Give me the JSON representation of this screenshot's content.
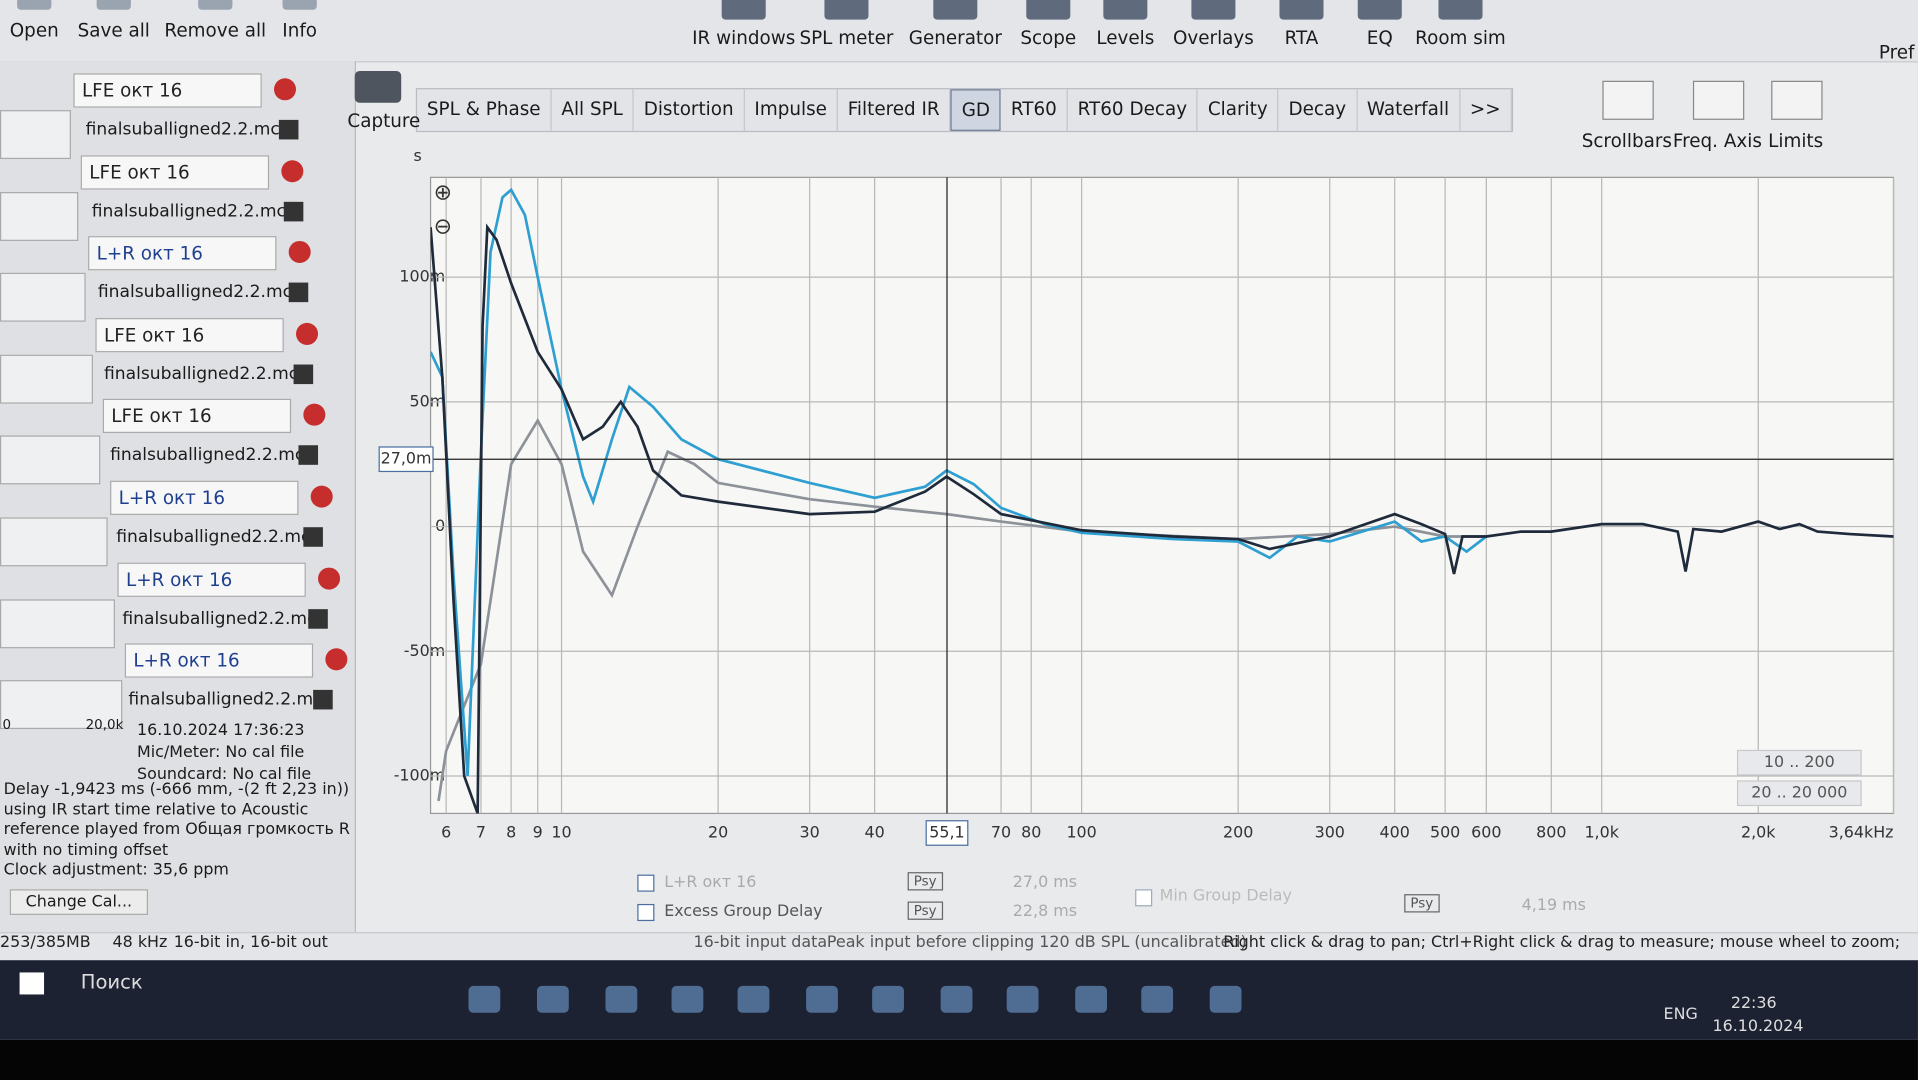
{
  "toolbar": {
    "file_buttons": [
      "Open",
      "Save all",
      "Remove all",
      "Info"
    ],
    "tool_buttons": [
      "IR windows",
      "SPL meter",
      "Generator",
      "Scope",
      "Levels",
      "Overlays",
      "RTA",
      "EQ",
      "Room sim"
    ],
    "preferences": "Pref"
  },
  "graph_toolbar": {
    "capture": "Capture",
    "tabs": [
      "SPL & Phase",
      "All SPL",
      "Distortion",
      "Impulse",
      "Filtered IR",
      "GD",
      "RT60",
      "RT60 Decay",
      "Clarity",
      "Decay",
      "Waterfall",
      ">>"
    ],
    "controls": [
      "Scrollbars",
      "Freq. Axis",
      "Limits"
    ]
  },
  "measurements": [
    {
      "name": "LFE окт 16",
      "file": "finalsuballigned2.2.mc"
    },
    {
      "name": "LFE окт 16",
      "file": "finalsuballigned2.2.mc"
    },
    {
      "name": "L+R окт 16",
      "file": "finalsuballigned2.2.mc"
    },
    {
      "name": "LFE окт 16",
      "file": "finalsuballigned2.2.mc"
    },
    {
      "name": "LFE окт 16",
      "file": "finalsuballigned2.2.mc"
    },
    {
      "name": "L+R окт 16",
      "file": "finalsuballigned2.2.mc"
    },
    {
      "name": "L+R окт 16",
      "file": "finalsuballigned2.2.mc"
    },
    {
      "name": "L+R окт 16",
      "file": "finalsuballigned2.2.mc",
      "date": "16.10.2024 17:36:23",
      "mic": "Mic/Meter: No cal file",
      "soundcard": "Soundcard: No cal file"
    }
  ],
  "thumbnail_axis": [
    "0",
    "20,0k"
  ],
  "info": [
    "Delay -1,9423 ms (-666 mm, -(2 ft 2,23 in))",
    "using IR start time relative to Acoustic",
    "reference played from Общая громкость R",
    "with no timing offset",
    "Clock adjustment: 35,6 ppm"
  ],
  "change_cal": "Change Cal...",
  "legend": {
    "rows": [
      {
        "label": "L+R окт 16",
        "psy": "Psy",
        "value": "27,0 ms"
      },
      {
        "label": "Excess Group Delay",
        "psy": "Psy",
        "value": "22,8 ms"
      }
    ],
    "min_group_delay": {
      "label": "Min Group Delay",
      "psy": "Psy",
      "value": "4,19 ms"
    }
  },
  "range_buttons": [
    "10 .. 200",
    "20 .. 20 000"
  ],
  "status_bar": [
    "253/385MB",
    "48 kHz",
    "16-bit in, 16-bit out",
    "16-bit input data",
    "Peak input before clipping 120 dB SPL (uncalibrated)",
    "Right click & drag to pan; Ctrl+Right click & drag to measure; mouse wheel to zoom;"
  ],
  "taskbar": {
    "search": "Поиск",
    "language": "ENG",
    "time": "22:36",
    "date": "16.10.2024"
  },
  "chart_data": {
    "type": "line",
    "y_label": "s",
    "xscale": "log",
    "grid": true,
    "xlim": [
      5.6,
      3640
    ],
    "ylim": [
      -0.115,
      0.14
    ],
    "xticks": [
      6,
      7,
      8,
      9,
      10,
      20,
      30,
      40,
      70,
      80,
      100,
      200,
      300,
      400,
      500,
      600,
      800,
      {
        "value": 1000,
        "label": "1,0k"
      },
      {
        "value": 2000,
        "label": "2,0k"
      },
      {
        "value": 3640,
        "label": "3,64kHz"
      }
    ],
    "yticks": [
      {
        "value": 0.1,
        "label": "100m"
      },
      {
        "value": 0.05,
        "label": "50m"
      },
      0,
      {
        "value": -0.05,
        "label": "-50m"
      },
      {
        "value": -0.1,
        "label": "-100m"
      }
    ],
    "cursor": {
      "x": 55.1,
      "x_label": "55,1",
      "y": 0.027,
      "y_label": "27,0m"
    },
    "series": [
      {
        "color": "#8c9298",
        "x": [
          5.8,
          6,
          7,
          8,
          9,
          10,
          11,
          12.5,
          14,
          16,
          18,
          20,
          30,
          40,
          55,
          70,
          100,
          200,
          300,
          400,
          500,
          600
        ],
        "values": [
          -0.11,
          -0.09,
          -0.055,
          0.025,
          0.0425,
          0.025,
          -0.01,
          -0.0275,
          0,
          0.03,
          0.025,
          0.0175,
          0.011,
          0.008,
          0.005,
          0.002,
          -0.002,
          -0.005,
          -0.003,
          0,
          -0.004,
          -0.004
        ]
      },
      {
        "color": "#2e9fd0",
        "x": [
          5.6,
          5.9,
          6.2,
          6.6,
          7,
          7.3,
          7.7,
          8,
          8.5,
          9,
          10,
          11,
          11.5,
          12.5,
          13.5,
          15,
          17,
          20,
          30,
          40,
          50,
          55,
          62,
          70,
          85,
          100,
          150,
          200,
          230,
          260,
          300,
          400,
          450,
          500,
          550,
          600
        ],
        "values": [
          0.07,
          0.06,
          -0.02,
          -0.1,
          0.03,
          0.11,
          0.132,
          0.135,
          0.125,
          0.1,
          0.055,
          0.02,
          0.01,
          0.035,
          0.056,
          0.048,
          0.035,
          0.027,
          0.0175,
          0.0115,
          0.016,
          0.0225,
          0.017,
          0.0075,
          0.001,
          -0.0025,
          -0.005,
          -0.006,
          -0.0125,
          -0.004,
          -0.006,
          0.002,
          -0.006,
          -0.004,
          -0.01,
          -0.004
        ]
      },
      {
        "color": "#1f2b3b",
        "x": [
          5.6,
          5.9,
          6.2,
          6.5,
          6.9,
          7.05,
          7.2,
          7.5,
          8,
          9,
          10,
          11,
          12,
          13,
          14,
          15,
          17,
          20,
          30,
          40,
          50,
          55,
          62,
          70,
          100,
          150,
          200,
          230,
          300,
          400,
          450,
          500,
          520,
          540,
          600,
          700,
          800,
          1000,
          1200,
          1400,
          1450,
          1500,
          1700,
          2000,
          2200,
          2400,
          2600,
          3000,
          3640
        ],
        "values": [
          0.12,
          0.06,
          -0.03,
          -0.1,
          -0.115,
          0.08,
          0.12,
          0.115,
          0.0975,
          0.07,
          0.055,
          0.035,
          0.04,
          0.05,
          0.04,
          0.0225,
          0.0125,
          0.01,
          0.005,
          0.006,
          0.014,
          0.02,
          0.013,
          0.005,
          -0.0015,
          -0.004,
          -0.005,
          -0.009,
          -0.004,
          0.005,
          0.001,
          -0.003,
          -0.019,
          -0.004,
          -0.004,
          -0.002,
          -0.002,
          0.001,
          0.001,
          -0.002,
          -0.018,
          -0.001,
          -0.002,
          0.002,
          -0.001,
          0.001,
          -0.002,
          -0.003,
          -0.004
        ]
      }
    ]
  }
}
